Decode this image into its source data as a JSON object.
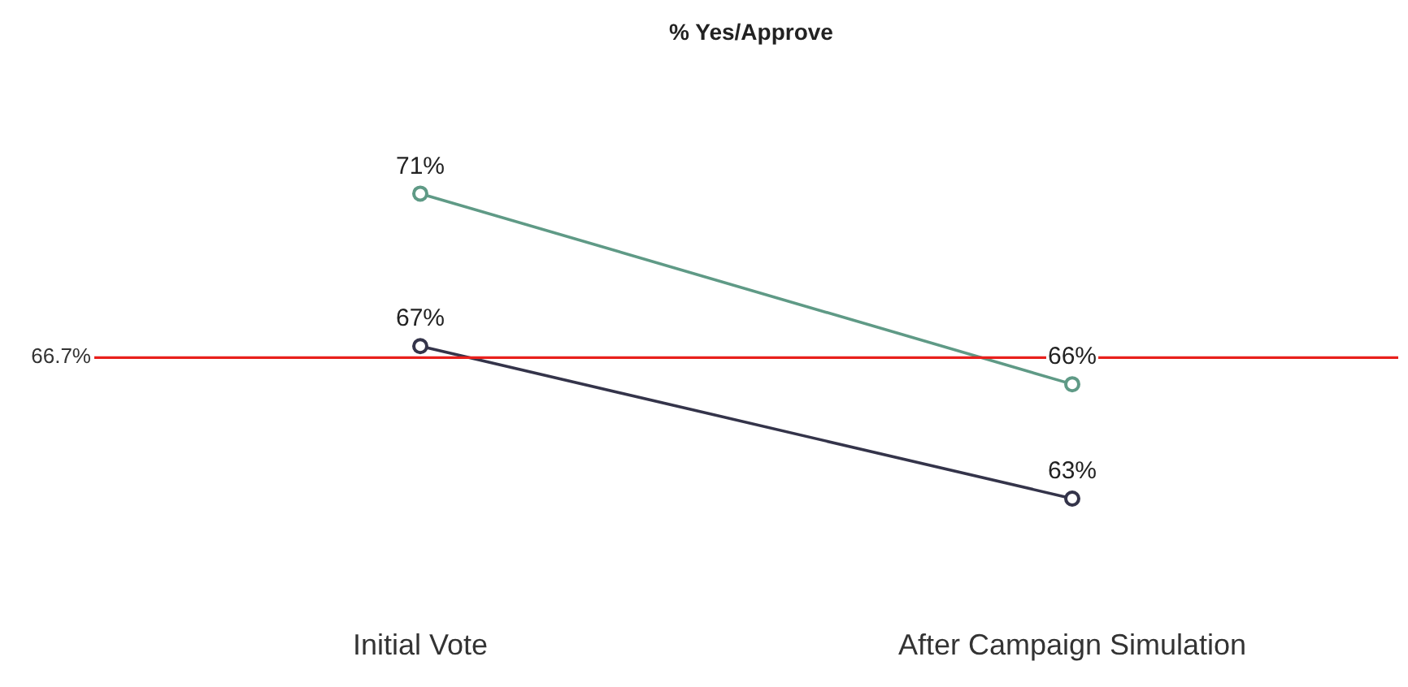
{
  "chart_data": {
    "type": "line",
    "title": "% Yes/Approve",
    "categories": [
      "Initial Vote",
      "After Campaign Simulation"
    ],
    "series": [
      {
        "color": "#5f9a86",
        "values": [
          71,
          66
        ],
        "value_labels": [
          "71%",
          "66%"
        ]
      },
      {
        "color": "#34344a",
        "values": [
          67,
          63
        ],
        "value_labels": [
          "67%",
          "63%"
        ]
      }
    ],
    "tick_labels": "x",
    "grid": false,
    "legend": false,
    "marker": "circle",
    "line_style": "solid",
    "ref_lines": [
      {
        "axis": "y",
        "value": 66.7,
        "label": "66.7%",
        "color": "#e8201c"
      }
    ]
  }
}
